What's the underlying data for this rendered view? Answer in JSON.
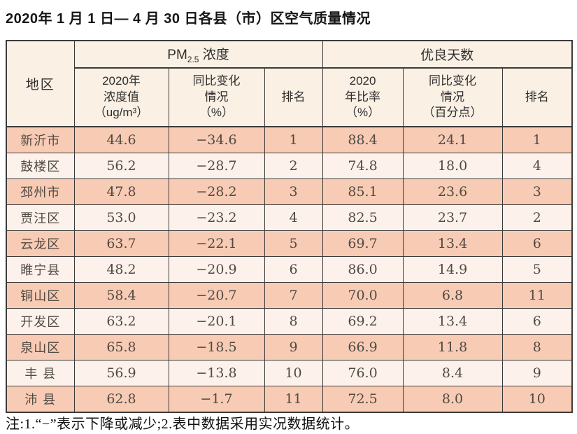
{
  "title": "2020年 1 月 1 日— 4 月 30 日各县（市）区空气质量情况",
  "footnote": "注:1.“−”表示下降或减少;2.表中数据采用实况数据统计。",
  "table": {
    "region_header": "地区",
    "pm25_group": {
      "prefix": "PM",
      "sub": "2.5",
      "suffix": " 浓度"
    },
    "good_days_group": "优良天数",
    "sub_headers": [
      "2020年\n浓度值\n（ug/m³）",
      "同比变化\n情况\n（%）",
      "排名",
      "2020\n年比率\n（%）",
      "同比变化\n情况\n（百分点）",
      "排名"
    ],
    "rows": [
      {
        "region": "新沂市",
        "pm25_value": "44.6",
        "pm25_change": "−34.6",
        "pm25_rank": "1",
        "good_rate": "88.4",
        "good_change": "24.1",
        "good_rank": "1"
      },
      {
        "region": "鼓楼区",
        "pm25_value": "56.2",
        "pm25_change": "−28.7",
        "pm25_rank": "2",
        "good_rate": "74.8",
        "good_change": "18.0",
        "good_rank": "4"
      },
      {
        "region": "邳州市",
        "pm25_value": "47.8",
        "pm25_change": "−28.2",
        "pm25_rank": "3",
        "good_rate": "85.1",
        "good_change": "23.6",
        "good_rank": "3"
      },
      {
        "region": "贾汪区",
        "pm25_value": "53.0",
        "pm25_change": "−23.2",
        "pm25_rank": "4",
        "good_rate": "82.5",
        "good_change": "23.7",
        "good_rank": "2"
      },
      {
        "region": "云龙区",
        "pm25_value": "63.7",
        "pm25_change": "−22.1",
        "pm25_rank": "5",
        "good_rate": "69.7",
        "good_change": "13.4",
        "good_rank": "6"
      },
      {
        "region": "睢宁县",
        "pm25_value": "48.2",
        "pm25_change": "−20.9",
        "pm25_rank": "6",
        "good_rate": "86.0",
        "good_change": "14.9",
        "good_rank": "5"
      },
      {
        "region": "铜山区",
        "pm25_value": "58.4",
        "pm25_change": "−20.7",
        "pm25_rank": "7",
        "good_rate": "70.0",
        "good_change": "6.8",
        "good_rank": "11"
      },
      {
        "region": "开发区",
        "pm25_value": "63.2",
        "pm25_change": "−20.1",
        "pm25_rank": "8",
        "good_rate": "69.2",
        "good_change": "13.4",
        "good_rank": "6"
      },
      {
        "region": "泉山区",
        "pm25_value": "65.8",
        "pm25_change": "−18.5",
        "pm25_rank": "9",
        "good_rate": "66.9",
        "good_change": "11.8",
        "good_rank": "8"
      },
      {
        "region": "丰 县",
        "pm25_value": "56.9",
        "pm25_change": "−13.8",
        "pm25_rank": "10",
        "good_rate": "76.0",
        "good_change": "8.4",
        "good_rank": "9"
      },
      {
        "region": "沛 县",
        "pm25_value": "62.8",
        "pm25_change": "−1.7",
        "pm25_rank": "11",
        "good_rate": "72.5",
        "good_change": "8.0",
        "good_rank": "10"
      }
    ]
  },
  "colors": {
    "header_bg": "#faf0e4",
    "row_odd": "#f8cbb4",
    "row_even": "#fdf2eb",
    "border": "#3b3b3b"
  }
}
